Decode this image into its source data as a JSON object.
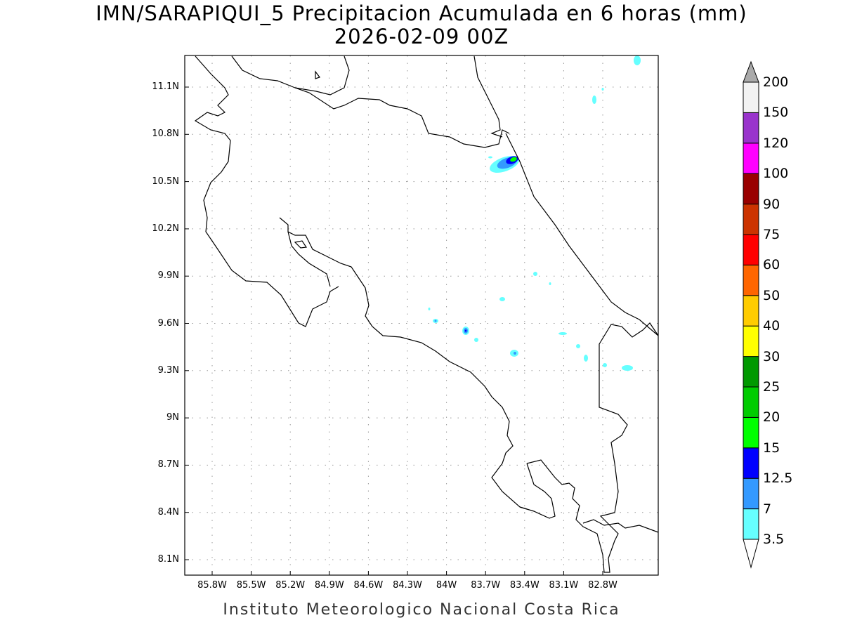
{
  "title": "IMN/SARAPIQUI_5 Precipitacion Acumulada en 6 horas (mm)",
  "subtitle": "2026-02-09 00Z",
  "footer": "Instituto Meteorologico Nacional Costa Rica",
  "lat_ticks": [
    "11.1N",
    "10.8N",
    "10.5N",
    "10.2N",
    "9.9N",
    "9.6N",
    "9.3N",
    "9N",
    "8.7N",
    "8.4N",
    "8.1N"
  ],
  "lon_ticks": [
    "85.8W",
    "85.5W",
    "85.2W",
    "84.9W",
    "84.6W",
    "84.3W",
    "84W",
    "83.7W",
    "83.4W",
    "83.1W",
    "82.8W"
  ],
  "colorbar": {
    "labels": [
      "3.5",
      "7",
      "12.5",
      "15",
      "20",
      "25",
      "30",
      "40",
      "50",
      "60",
      "75",
      "90",
      "100",
      "120",
      "150",
      "200"
    ],
    "colors": [
      "#66ffff",
      "#3399ff",
      "#0000ff",
      "#00ff00",
      "#00cc00",
      "#009900",
      "#ffff00",
      "#ffcc00",
      "#ff6600",
      "#ff0000",
      "#cc3300",
      "#990000",
      "#ff00ff",
      "#9933cc",
      "#f2f2f2"
    ],
    "over_color": "#aaaaaa",
    "under_color": "#ffffff"
  }
}
